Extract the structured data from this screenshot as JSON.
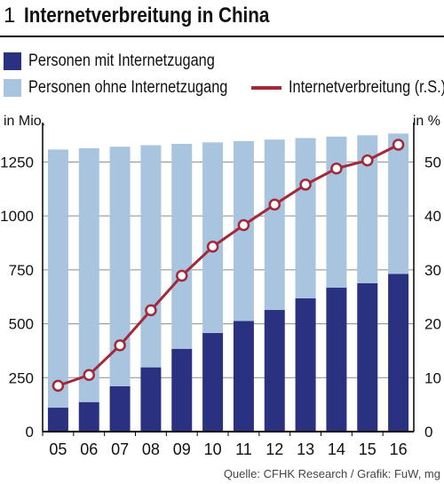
{
  "title": {
    "number": "1",
    "text": "Internetverbreitung in China"
  },
  "legend": {
    "with_access": "Personen mit Internetzugang",
    "without_access": "Personen ohne Internetzugang",
    "penetration": "Internetverbreitung (r.S.)"
  },
  "units": {
    "left": "in Mio.",
    "right": "in %"
  },
  "source": "Quelle: CFHK Research / Grafik: FuW, mg",
  "colors": {
    "with_access": "#2a3180",
    "without_access": "#a8c4de",
    "penetration": "#a3283a",
    "marker_fill": "#ffffff"
  },
  "chart_data": {
    "type": "bar",
    "stacked": true,
    "categories": [
      "05",
      "06",
      "07",
      "08",
      "09",
      "10",
      "11",
      "12",
      "13",
      "14",
      "15",
      "16"
    ],
    "series": [
      {
        "name": "Personen mit Internetzugang",
        "axis": "left",
        "values": [
          111,
          137,
          210,
          298,
          384,
          457,
          513,
          564,
          618,
          668,
          688,
          731
        ]
      },
      {
        "name": "Personen ohne Internetzugang",
        "axis": "left",
        "values": [
          1197,
          1177,
          1111,
          1030,
          950,
          884,
          834,
          790,
          743,
          700,
          686,
          651
        ]
      },
      {
        "name": "Internetverbreitung (r.S.)",
        "type": "line",
        "axis": "right",
        "values": [
          8.5,
          10.5,
          16,
          22.5,
          28.9,
          34.3,
          38.3,
          42.1,
          45.8,
          48.8,
          50.3,
          53.2
        ]
      }
    ],
    "yleft": {
      "label": "in Mio.",
      "ticks": [
        0,
        250,
        500,
        750,
        1000,
        1250
      ],
      "ylim": [
        0,
        1400
      ]
    },
    "yright": {
      "label": "in %",
      "ticks": [
        0,
        10,
        20,
        30,
        40,
        50
      ],
      "ylim": [
        0,
        56
      ]
    },
    "grid": true,
    "legend_position": "top"
  }
}
